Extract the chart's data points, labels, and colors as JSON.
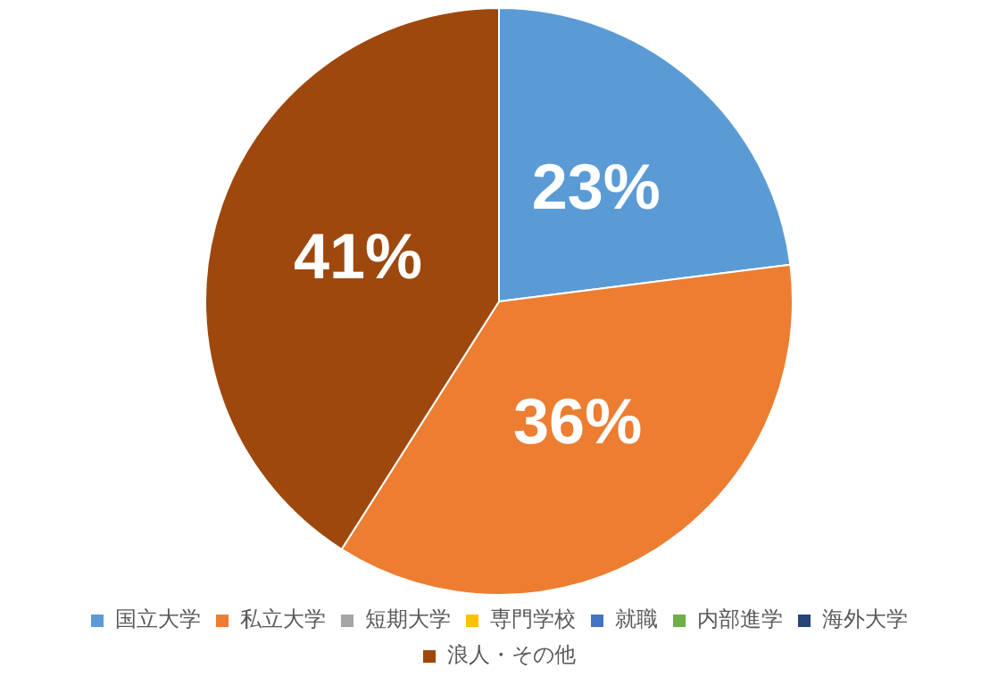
{
  "chart_data": {
    "type": "pie",
    "categories": [
      "国立大学",
      "私立大学",
      "短期大学",
      "専門学校",
      "就職",
      "内部進学",
      "海外大学",
      "浪人・その他"
    ],
    "values": [
      23,
      36,
      0,
      0,
      0,
      0,
      0,
      41
    ],
    "colors": [
      "#5b9bd5",
      "#ed7d31",
      "#a5a5a5",
      "#ffc000",
      "#4472c4",
      "#70ad47",
      "#264478",
      "#9e480e"
    ],
    "value_labels": [
      "23%",
      "36%",
      null,
      null,
      null,
      null,
      null,
      "41%"
    ],
    "legend": "bottom"
  }
}
